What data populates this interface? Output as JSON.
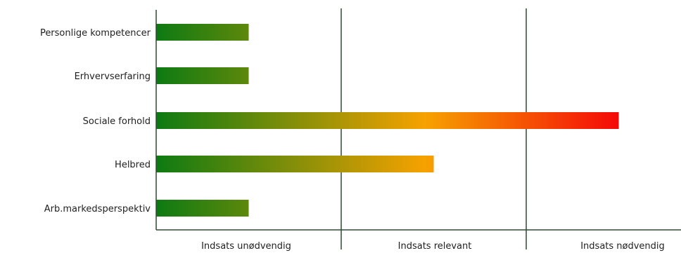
{
  "chart_data": {
    "type": "bar",
    "orientation": "horizontal",
    "categories": [
      "Personlige kompetencer",
      "Erhvervserfaring",
      "Sociale forhold",
      "Helbred",
      "Arb.markedsperspektiv"
    ],
    "values": [
      0.5,
      0.5,
      2.5,
      1.5,
      0.5
    ],
    "xlim": [
      0,
      3
    ],
    "zones": [
      "Indsats unødvendig",
      "Indsats relevant",
      "Indsats nødvendig"
    ],
    "gradient_colors": [
      "#0d7a12",
      "#f6a200",
      "#f50808"
    ],
    "grid": true
  }
}
